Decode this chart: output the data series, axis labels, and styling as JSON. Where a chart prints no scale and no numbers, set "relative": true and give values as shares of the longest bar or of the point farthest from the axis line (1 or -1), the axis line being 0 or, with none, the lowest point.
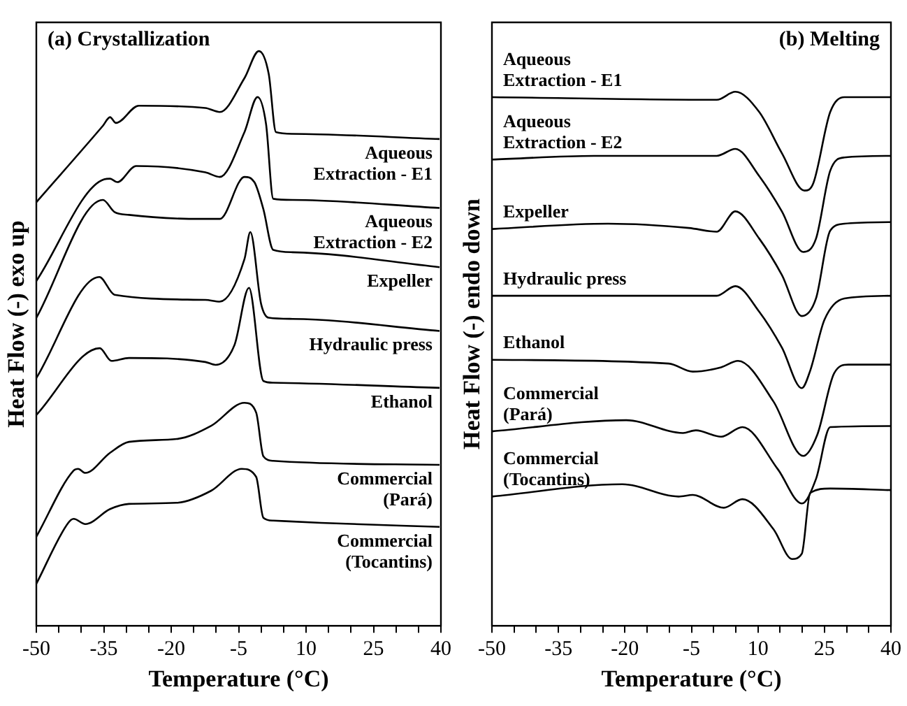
{
  "chart_data": [
    {
      "type": "line",
      "title": "(a) Crystallization",
      "xlabel": "Temperature (°C)",
      "ylabel": "Heat Flow (-) exo up",
      "relative": true,
      "grid": false,
      "legend": false,
      "marker": "none",
      "line_style": "solid",
      "xlim": [
        -50,
        40
      ],
      "xticks": [
        -50,
        {
          "value": -45,
          "label": null
        },
        {
          "value": -40,
          "label": null
        },
        -35,
        {
          "value": -30,
          "label": null
        },
        {
          "value": -25,
          "label": null
        },
        -20,
        {
          "value": -15,
          "label": null
        },
        {
          "value": -10,
          "label": null
        },
        -5,
        {
          "value": 0,
          "label": null
        },
        {
          "value": 5,
          "label": null
        },
        10,
        {
          "value": 15,
          "label": null
        },
        {
          "value": 20,
          "label": null
        },
        25,
        {
          "value": 30,
          "label": null
        },
        {
          "value": 35,
          "label": null
        },
        40
      ],
      "series": [
        {
          "name": "Aqueous Extraction - E1",
          "color": "#000000",
          "x": [
            -50,
            -35.2,
            -33.6,
            -32.3,
            -27.2,
            -12.4,
            -9.2,
            -3.7,
            -0.5,
            1.7,
            3.3,
            7,
            39.7
          ],
          "values": [
            0.737,
            0.87,
            0.885,
            0.875,
            0.905,
            0.901,
            0.894,
            0.953,
            1.0,
            0.96,
            0.859,
            0.856,
            0.847
          ]
        },
        {
          "name": "Aqueous Extraction - E2",
          "color": "#000000",
          "x": [
            -50,
            -34.9,
            -33.6,
            -32,
            -27.8,
            -12.4,
            -9.2,
            -3.7,
            -0.8,
            1.1,
            2.7,
            7,
            39.7
          ],
          "values": [
            0.6,
            0.777,
            0.778,
            0.772,
            0.8,
            0.789,
            0.781,
            0.859,
            0.92,
            0.873,
            0.743,
            0.741,
            0.727
          ]
        },
        {
          "name": "Expeller",
          "color": "#000000",
          "x": [
            -50,
            -35.2,
            -32.6,
            -29.4,
            -13.4,
            -9.2,
            -3.7,
            -1.5,
            0.5,
            2.7,
            7,
            39.7
          ],
          "values": [
            0.536,
            0.741,
            0.72,
            0.715,
            0.708,
            0.708,
            0.781,
            0.772,
            0.725,
            0.654,
            0.65,
            0.624
          ]
        },
        {
          "name": "Hydraulic press",
          "color": "#000000",
          "x": [
            -50,
            -36,
            -32.6,
            -12.4,
            -9.2,
            -3.7,
            -2.4,
            0,
            1.7,
            7,
            39.7
          ],
          "values": [
            0.431,
            0.607,
            0.576,
            0.567,
            0.564,
            0.638,
            0.685,
            0.56,
            0.536,
            0.534,
            0.513
          ]
        },
        {
          "name": "Ethanol",
          "color": "#000000",
          "x": [
            -50,
            -35.9,
            -33.3,
            -29.4,
            -12.4,
            -10.1,
            -5.9,
            -2.7,
            0.5,
            2.7,
            39.7
          ],
          "values": [
            0.367,
            0.483,
            0.461,
            0.466,
            0.459,
            0.454,
            0.489,
            0.588,
            0.426,
            0.423,
            0.414
          ]
        },
        {
          "name": "Commercial (Pará)",
          "color": "#000000",
          "x": [
            -50,
            -41.7,
            -40.7,
            -39.1,
            -33.6,
            -29.4,
            -18.8,
            -11.1,
            -3.7,
            -1.1,
            0.5,
            2.7,
            39.7
          ],
          "values": [
            0.155,
            0.27,
            0.273,
            0.266,
            0.301,
            0.32,
            0.325,
            0.348,
            0.388,
            0.371,
            0.295,
            0.287,
            0.28
          ]
        },
        {
          "name": "Commercial (Tocantins)",
          "color": "#000000",
          "x": [
            -50,
            -42.9,
            -41.7,
            -39.1,
            -33.6,
            -29.4,
            -18.8,
            -11.1,
            -4.3,
            -1.1,
            0.5,
            2.7,
            13.3,
            39.7
          ],
          "values": [
            0.073,
            0.179,
            0.186,
            0.177,
            0.203,
            0.212,
            0.214,
            0.235,
            0.273,
            0.259,
            0.188,
            0.183,
            0.179,
            0.172
          ]
        }
      ]
    },
    {
      "type": "line",
      "title": "(b) Melting",
      "xlabel": "Temperature (°C)",
      "ylabel": "Heat Flow (-) endo down",
      "relative": true,
      "grid": false,
      "legend": false,
      "marker": "none",
      "line_style": "solid",
      "xlim": [
        -50,
        40
      ],
      "xticks": [
        -50,
        {
          "value": -45,
          "label": null
        },
        {
          "value": -40,
          "label": null
        },
        -35,
        {
          "value": -30,
          "label": null
        },
        {
          "value": -25,
          "label": null
        },
        -20,
        {
          "value": -15,
          "label": null
        },
        {
          "value": -10,
          "label": null
        },
        -5,
        {
          "value": 0,
          "label": null
        },
        {
          "value": 5,
          "label": null
        },
        10,
        {
          "value": 15,
          "label": null
        },
        {
          "value": 20,
          "label": null
        },
        25,
        {
          "value": 30,
          "label": null
        },
        {
          "value": 35,
          "label": null
        },
        40
      ],
      "series": [
        {
          "name": "Aqueous Extraction - E1",
          "color": "#000000",
          "x": [
            -50,
            0.7,
            4.9,
            10.3,
            15.4,
            20.5,
            22.5,
            26.3,
            29.5,
            40
          ],
          "values": [
            0.99,
            0.985,
            1.0,
            0.962,
            0.885,
            0.815,
            0.829,
            0.962,
            0.99,
            0.99
          ]
        },
        {
          "name": "Aqueous Extraction - E2",
          "color": "#000000",
          "x": [
            -50,
            -27,
            0.7,
            4.9,
            10.3,
            15.4,
            20.2,
            23.1,
            26.3,
            29.5,
            40
          ],
          "values": [
            0.873,
            0.88,
            0.88,
            0.893,
            0.842,
            0.776,
            0.7,
            0.725,
            0.852,
            0.877,
            0.88
          ]
        },
        {
          "name": "Expeller",
          "color": "#000000",
          "x": [
            -50,
            -23.8,
            -5.6,
            0.7,
            4.9,
            10.3,
            15.4,
            19.9,
            23.1,
            26.3,
            29.5,
            40
          ],
          "values": [
            0.743,
            0.753,
            0.745,
            0.738,
            0.776,
            0.725,
            0.657,
            0.58,
            0.613,
            0.74,
            0.753,
            0.756
          ]
        },
        {
          "name": "Hydraulic press",
          "color": "#000000",
          "x": [
            -50,
            0.7,
            4.9,
            10.3,
            15.4,
            19.9,
            21.8,
            25,
            29.5,
            40
          ],
          "values": [
            0.618,
            0.618,
            0.636,
            0.588,
            0.521,
            0.445,
            0.478,
            0.573,
            0.613,
            0.618
          ]
        },
        {
          "name": "Ethanol",
          "color": "#000000",
          "x": [
            -50,
            -10.1,
            -4.7,
            1.7,
            5.5,
            13.5,
            20.2,
            23.4,
            27.2,
            30.4,
            40
          ],
          "values": [
            0.498,
            0.491,
            0.476,
            0.484,
            0.496,
            0.42,
            0.318,
            0.358,
            0.473,
            0.489,
            0.489
          ]
        },
        {
          "name": "Commercial (Pará)",
          "color": "#000000",
          "x": [
            -50,
            -19.7,
            -6.9,
            -4,
            1.7,
            6.5,
            14.5,
            19.9,
            23.1,
            26.3,
            40
          ],
          "values": [
            0.364,
            0.385,
            0.361,
            0.366,
            0.354,
            0.372,
            0.293,
            0.229,
            0.275,
            0.372,
            0.374
          ]
        },
        {
          "name": "Commercial (Tocantins)",
          "color": "#000000",
          "x": [
            -50,
            -20.6,
            -7.9,
            -4.7,
            2.3,
            6.5,
            13.5,
            17.7,
            19.9,
            21.8,
            26.3,
            40
          ],
          "values": [
            0.242,
            0.265,
            0.242,
            0.245,
            0.221,
            0.237,
            0.181,
            0.125,
            0.135,
            0.249,
            0.257,
            0.254
          ]
        }
      ]
    }
  ]
}
